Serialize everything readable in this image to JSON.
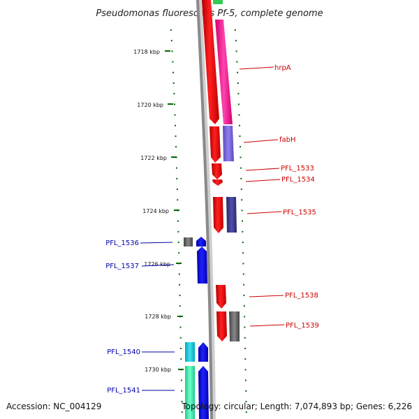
{
  "title": "Pseudomonas fluorescens Pf-5, complete genome",
  "footer": {
    "accession": "Accession: NC_004129",
    "topology": "Topology: circular; Length: 7,074,893 bp; Genes: 6,226"
  },
  "scale_labels": [
    "1718 kbp",
    "1720 kbp",
    "1722 kbp",
    "1724 kbp",
    "1726 kbp",
    "1728 kbp",
    "1730 kbp"
  ],
  "colors": {
    "forward": "#ff0000",
    "reverse": "#0000ff",
    "label_forward": "#cc0000",
    "label_reverse": "#0000aa",
    "backbone": "#888888",
    "ticks": "#006600"
  },
  "genes_forward": [
    "hrpA",
    "fabH",
    "PFL_1533",
    "PFL_1534",
    "PFL_1535",
    "PFL_1538",
    "PFL_1539"
  ],
  "genes_reverse": [
    "PFL_1536",
    "PFL_1537",
    "PFL_1540",
    "PFL_1541"
  ]
}
